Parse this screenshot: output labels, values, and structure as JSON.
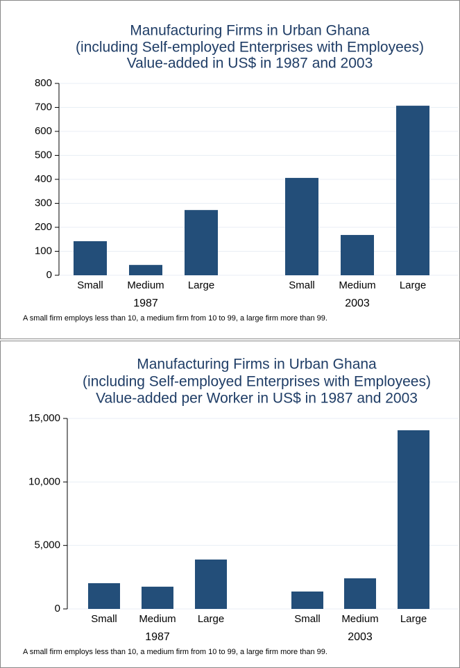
{
  "chart_data": [
    {
      "type": "bar",
      "title": [
        "Manufacturing Firms in Urban Ghana",
        "(including Self-employed Enterprises with Employees)",
        "Value-added in US$ in 1987 and 2003"
      ],
      "groups": [
        {
          "name": "1987",
          "categories": [
            "Small",
            "Medium",
            "Large"
          ],
          "values": [
            142,
            43,
            272
          ]
        },
        {
          "name": "2003",
          "categories": [
            "Small",
            "Medium",
            "Large"
          ],
          "values": [
            406,
            168,
            707
          ]
        }
      ],
      "color": "#234e79",
      "ylim": [
        0,
        800
      ],
      "yticks": [
        0,
        100,
        200,
        300,
        400,
        500,
        600,
        700,
        800
      ],
      "grid": true,
      "note": "A small firm employs less than 10, a medium firm from 10 to 99, a large firm more than 99."
    },
    {
      "type": "bar",
      "title": [
        "Manufacturing Firms in Urban Ghana",
        "(including Self-employed Enterprises with Employees)",
        "Value-added per Worker in US$ in 1987 and 2003"
      ],
      "groups": [
        {
          "name": "1987",
          "categories": [
            "Small",
            "Medium",
            "Large"
          ],
          "values": [
            2025,
            1750,
            3890
          ]
        },
        {
          "name": "2003",
          "categories": [
            "Small",
            "Medium",
            "Large"
          ],
          "values": [
            1370,
            2410,
            14070
          ]
        }
      ],
      "color": "#234e79",
      "ylim": [
        0,
        15000
      ],
      "yticks": [
        0,
        {
          "value": 5000,
          "label": "5,000"
        },
        {
          "value": 10000,
          "label": "10,000"
        },
        {
          "value": 15000,
          "label": "15,000"
        }
      ],
      "grid": true,
      "note": "A small firm employs less than 10, a medium firm from 10 to 99, a large firm more than 99."
    }
  ]
}
